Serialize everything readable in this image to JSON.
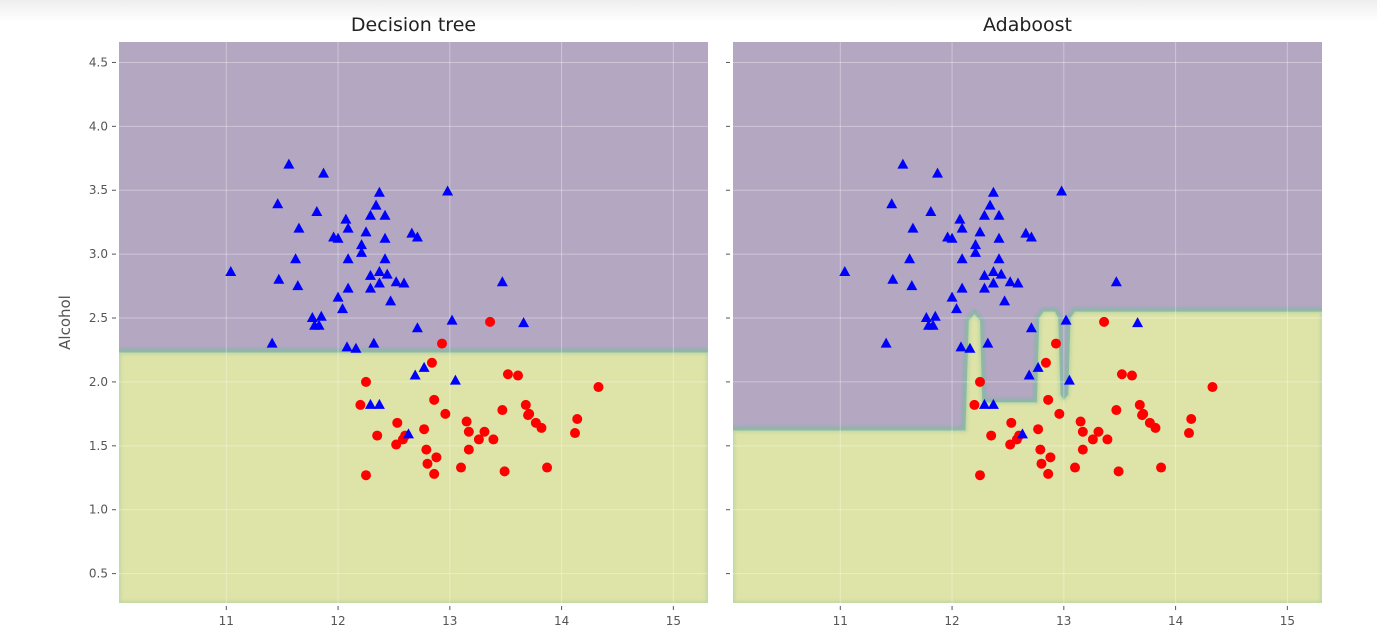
{
  "chart_data": [
    {
      "type": "scatter",
      "title": "Decision tree",
      "xlabel": "",
      "ylabel": "Alcohol",
      "xlim": [
        10.04,
        15.31
      ],
      "ylim": [
        0.27,
        4.66
      ],
      "xticks": [
        "11",
        "12",
        "13",
        "14",
        "15"
      ],
      "yticks": [
        "0.5",
        "1.0",
        "1.5",
        "2.0",
        "2.5",
        "3.0",
        "3.5",
        "4.0",
        "4.5"
      ],
      "grid": true,
      "region_colors": {
        "class0": "#b4a7c2",
        "class1": "#dee3a7"
      },
      "class1_region": [
        [
          10.04,
          0.27
        ],
        [
          10.04,
          2.23
        ],
        [
          15.31,
          2.23
        ],
        [
          15.31,
          0.27
        ]
      ]
    },
    {
      "type": "scatter",
      "title": "Adaboost",
      "xlabel": "",
      "ylabel": "",
      "xlim": [
        10.04,
        15.31
      ],
      "ylim": [
        0.27,
        4.66
      ],
      "xticks": [
        "11",
        "12",
        "13",
        "14",
        "15"
      ],
      "yticks": [
        "",
        "",
        "",
        "",
        "",
        "",
        "",
        "",
        ""
      ],
      "grid": true,
      "region_colors": {
        "class0": "#b4a7c2",
        "class1": "#dee3a7"
      },
      "class1_region": [
        [
          10.04,
          0.27
        ],
        [
          10.04,
          1.62
        ],
        [
          12.12,
          1.62
        ],
        [
          12.15,
          2.48
        ],
        [
          12.2,
          2.53
        ],
        [
          12.25,
          2.48
        ],
        [
          12.27,
          1.84
        ],
        [
          12.76,
          1.84
        ],
        [
          12.78,
          2.5
        ],
        [
          12.82,
          2.55
        ],
        [
          12.92,
          2.55
        ],
        [
          12.95,
          2.5
        ],
        [
          12.97,
          1.9
        ],
        [
          13.0,
          1.86
        ],
        [
          13.04,
          1.9
        ],
        [
          13.06,
          2.5
        ],
        [
          13.1,
          2.55
        ],
        [
          15.31,
          2.55
        ],
        [
          15.31,
          0.27
        ]
      ]
    }
  ],
  "series": {
    "class0": {
      "marker": "triangle",
      "color": "#0000ff",
      "points": [
        [
          11.56,
          3.7
        ],
        [
          11.87,
          3.63
        ],
        [
          12.37,
          3.48
        ],
        [
          12.98,
          3.49
        ],
        [
          11.46,
          3.39
        ],
        [
          11.81,
          3.33
        ],
        [
          12.07,
          3.27
        ],
        [
          12.34,
          3.38
        ],
        [
          12.29,
          3.3
        ],
        [
          12.42,
          3.3
        ],
        [
          12.09,
          3.2
        ],
        [
          11.65,
          3.2
        ],
        [
          11.96,
          3.13
        ],
        [
          12.0,
          3.12
        ],
        [
          12.25,
          3.17
        ],
        [
          12.42,
          3.12
        ],
        [
          12.66,
          3.16
        ],
        [
          12.71,
          3.13
        ],
        [
          12.21,
          3.07
        ],
        [
          12.21,
          3.01
        ],
        [
          11.62,
          2.96
        ],
        [
          12.09,
          2.96
        ],
        [
          12.42,
          2.96
        ],
        [
          11.04,
          2.86
        ],
        [
          11.47,
          2.8
        ],
        [
          11.64,
          2.75
        ],
        [
          12.29,
          2.83
        ],
        [
          12.37,
          2.86
        ],
        [
          12.44,
          2.84
        ],
        [
          12.37,
          2.77
        ],
        [
          12.29,
          2.73
        ],
        [
          12.52,
          2.78
        ],
        [
          12.59,
          2.77
        ],
        [
          12.09,
          2.73
        ],
        [
          12.47,
          2.63
        ],
        [
          12.0,
          2.66
        ],
        [
          12.04,
          2.57
        ],
        [
          13.47,
          2.78
        ],
        [
          11.77,
          2.5
        ],
        [
          11.85,
          2.51
        ],
        [
          11.79,
          2.44
        ],
        [
          11.83,
          2.44
        ],
        [
          12.71,
          2.42
        ],
        [
          13.02,
          2.48
        ],
        [
          13.66,
          2.46
        ],
        [
          11.41,
          2.3
        ],
        [
          12.08,
          2.27
        ],
        [
          12.16,
          2.26
        ],
        [
          12.32,
          2.3
        ],
        [
          12.77,
          2.11
        ],
        [
          12.69,
          2.05
        ],
        [
          13.05,
          2.01
        ],
        [
          12.29,
          1.82
        ],
        [
          12.37,
          1.82
        ],
        [
          12.63,
          1.59
        ]
      ]
    },
    "class1": {
      "marker": "circle",
      "color": "#ff0000",
      "points": [
        [
          13.36,
          2.47
        ],
        [
          12.93,
          2.3
        ],
        [
          12.84,
          2.15
        ],
        [
          12.25,
          2.0
        ],
        [
          13.52,
          2.06
        ],
        [
          13.61,
          2.05
        ],
        [
          14.33,
          1.96
        ],
        [
          12.2,
          1.82
        ],
        [
          12.86,
          1.86
        ],
        [
          12.96,
          1.75
        ],
        [
          13.47,
          1.78
        ],
        [
          13.68,
          1.82
        ],
        [
          13.71,
          1.75
        ],
        [
          13.7,
          1.74
        ],
        [
          13.77,
          1.68
        ],
        [
          13.82,
          1.64
        ],
        [
          14.14,
          1.71
        ],
        [
          14.12,
          1.6
        ],
        [
          12.53,
          1.68
        ],
        [
          12.35,
          1.58
        ],
        [
          12.6,
          1.58
        ],
        [
          12.58,
          1.55
        ],
        [
          12.52,
          1.51
        ],
        [
          12.77,
          1.63
        ],
        [
          13.15,
          1.69
        ],
        [
          13.17,
          1.61
        ],
        [
          13.31,
          1.61
        ],
        [
          13.26,
          1.55
        ],
        [
          13.39,
          1.55
        ],
        [
          13.17,
          1.47
        ],
        [
          12.79,
          1.47
        ],
        [
          12.88,
          1.41
        ],
        [
          12.8,
          1.36
        ],
        [
          12.86,
          1.28
        ],
        [
          13.1,
          1.33
        ],
        [
          13.49,
          1.3
        ],
        [
          13.87,
          1.33
        ],
        [
          12.25,
          1.27
        ]
      ]
    }
  }
}
